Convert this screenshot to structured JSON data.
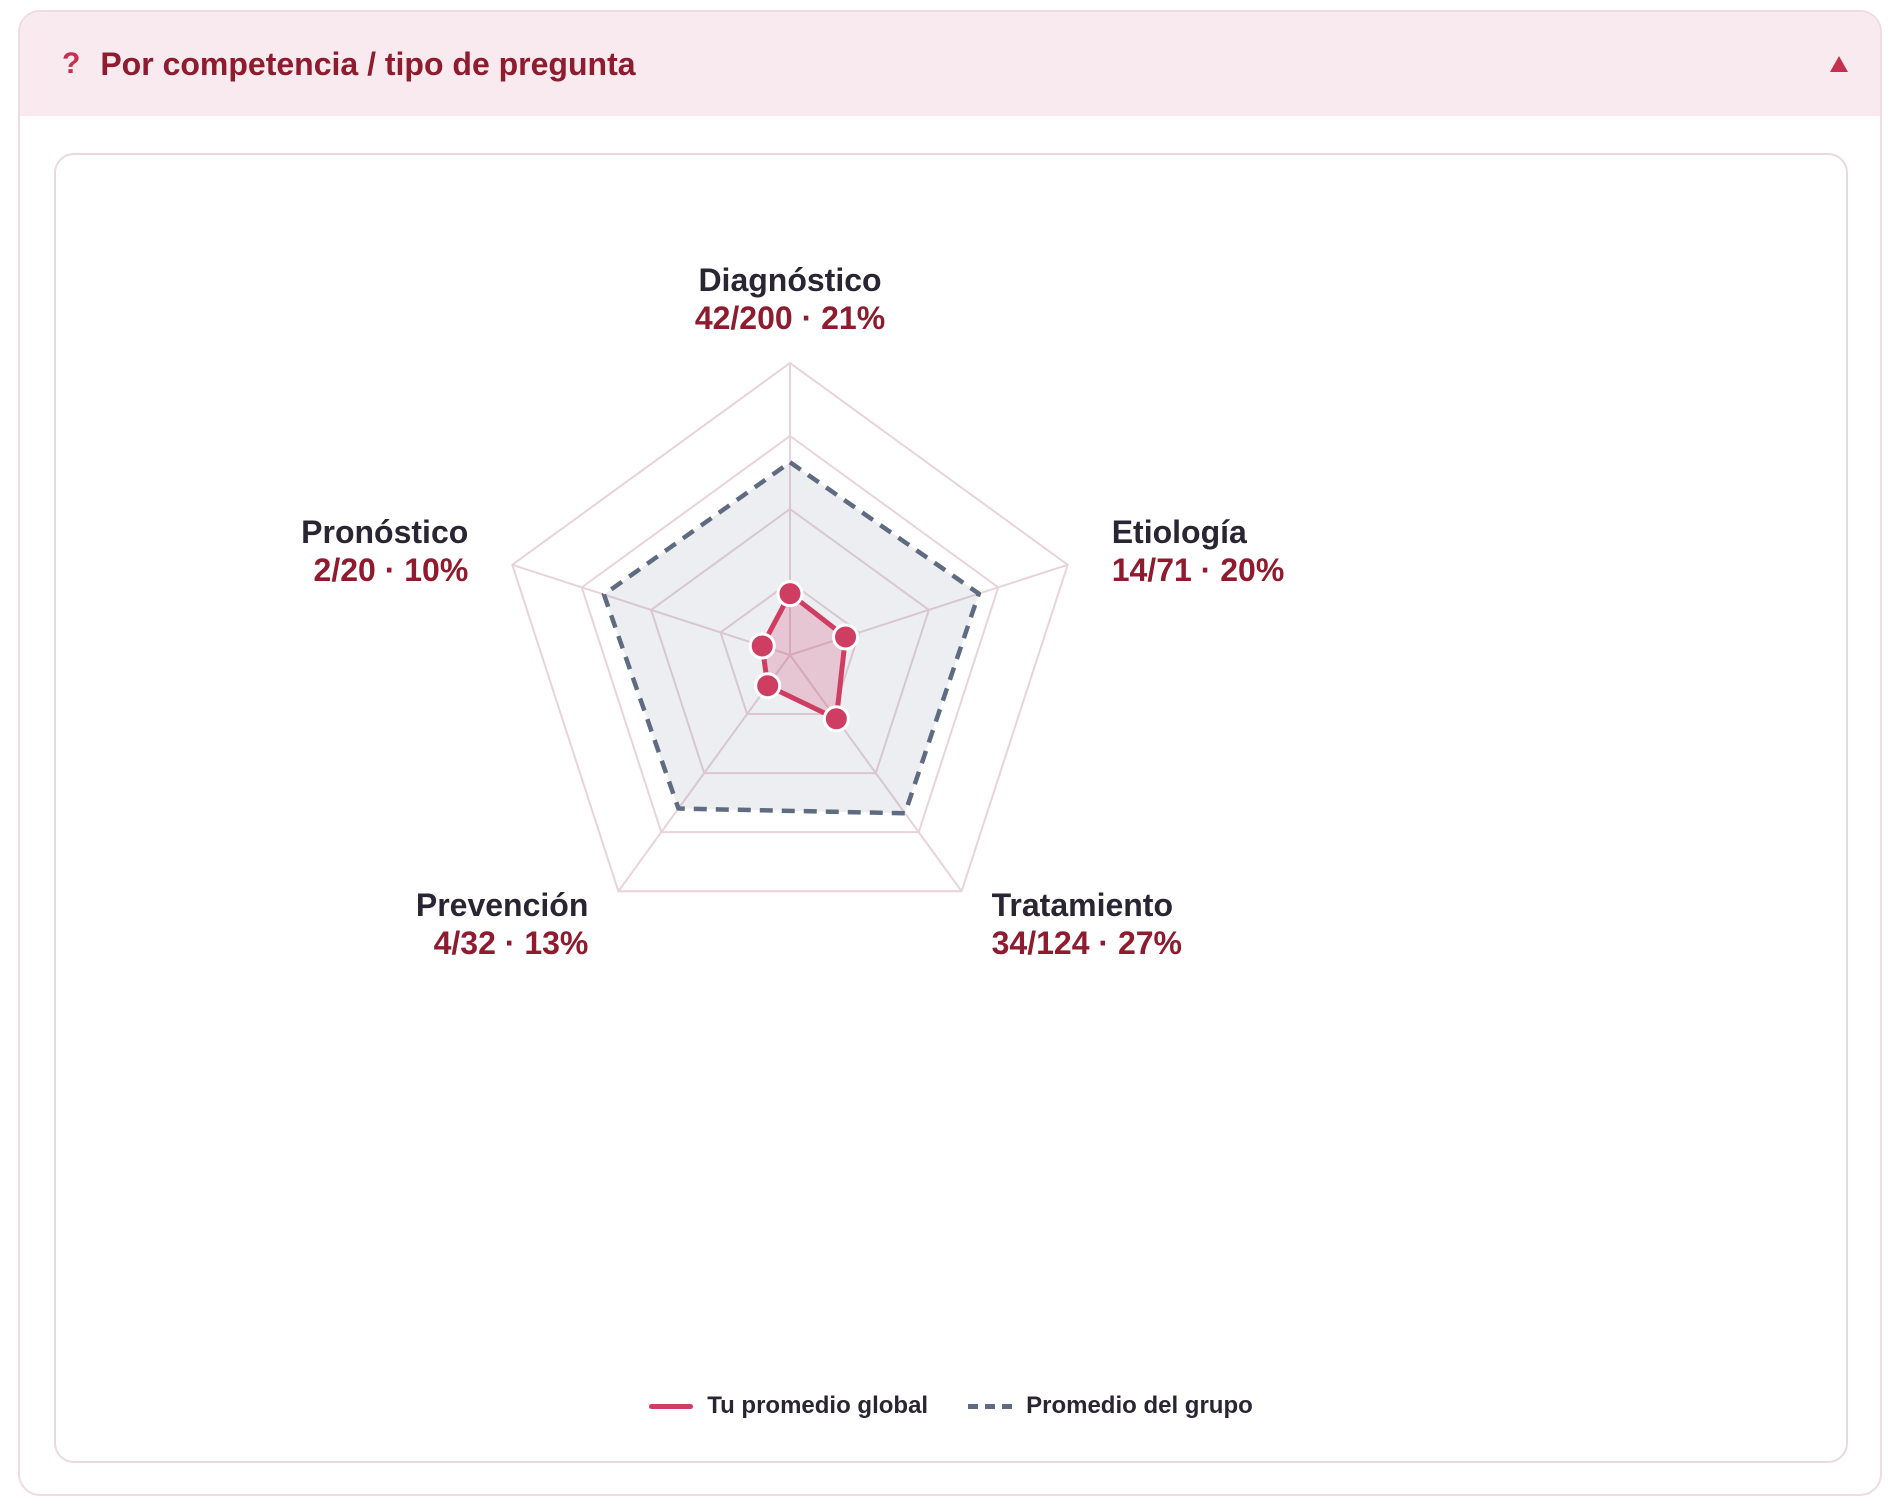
{
  "header": {
    "icon": "question-mark-icon",
    "icon_glyph": "?",
    "title": "Por competencia / tipo de pregunta",
    "collapse_icon": "triangle-up-icon"
  },
  "chart_data": {
    "type": "radar",
    "title": "",
    "axes": [
      {
        "name": "Diagnóstico",
        "label": "42/200 · 21%",
        "correct": 42,
        "total": 200
      },
      {
        "name": "Etiología",
        "label": "14/71 · 20%",
        "correct": 14,
        "total": 71
      },
      {
        "name": "Tratamiento",
        "label": "34/124 · 27%",
        "correct": 34,
        "total": 124
      },
      {
        "name": "Prevención",
        "label": "4/32 · 13%",
        "correct": 4,
        "total": 32
      },
      {
        "name": "Pronóstico",
        "label": "2/20 · 10%",
        "correct": 2,
        "total": 20
      }
    ],
    "range": [
      0,
      100
    ],
    "grid_levels": [
      25,
      50,
      75,
      100
    ],
    "series": [
      {
        "name": "Tu promedio global",
        "values": [
          21,
          20,
          27,
          13,
          10
        ],
        "color": "#d03d63",
        "style": "solid",
        "markers": true
      },
      {
        "name": "Promedio del grupo",
        "values": [
          66,
          68,
          67,
          65,
          67
        ],
        "color": "#5f6b80",
        "style": "dashed",
        "markers": false
      }
    ],
    "legend": {
      "position": "bottom-center"
    }
  },
  "colors": {
    "accent": "#d03d63",
    "title": "#8e1b2e",
    "header_bg": "#f8eaee",
    "grid": "#e9d3d9",
    "group": "#5f6b80"
  }
}
